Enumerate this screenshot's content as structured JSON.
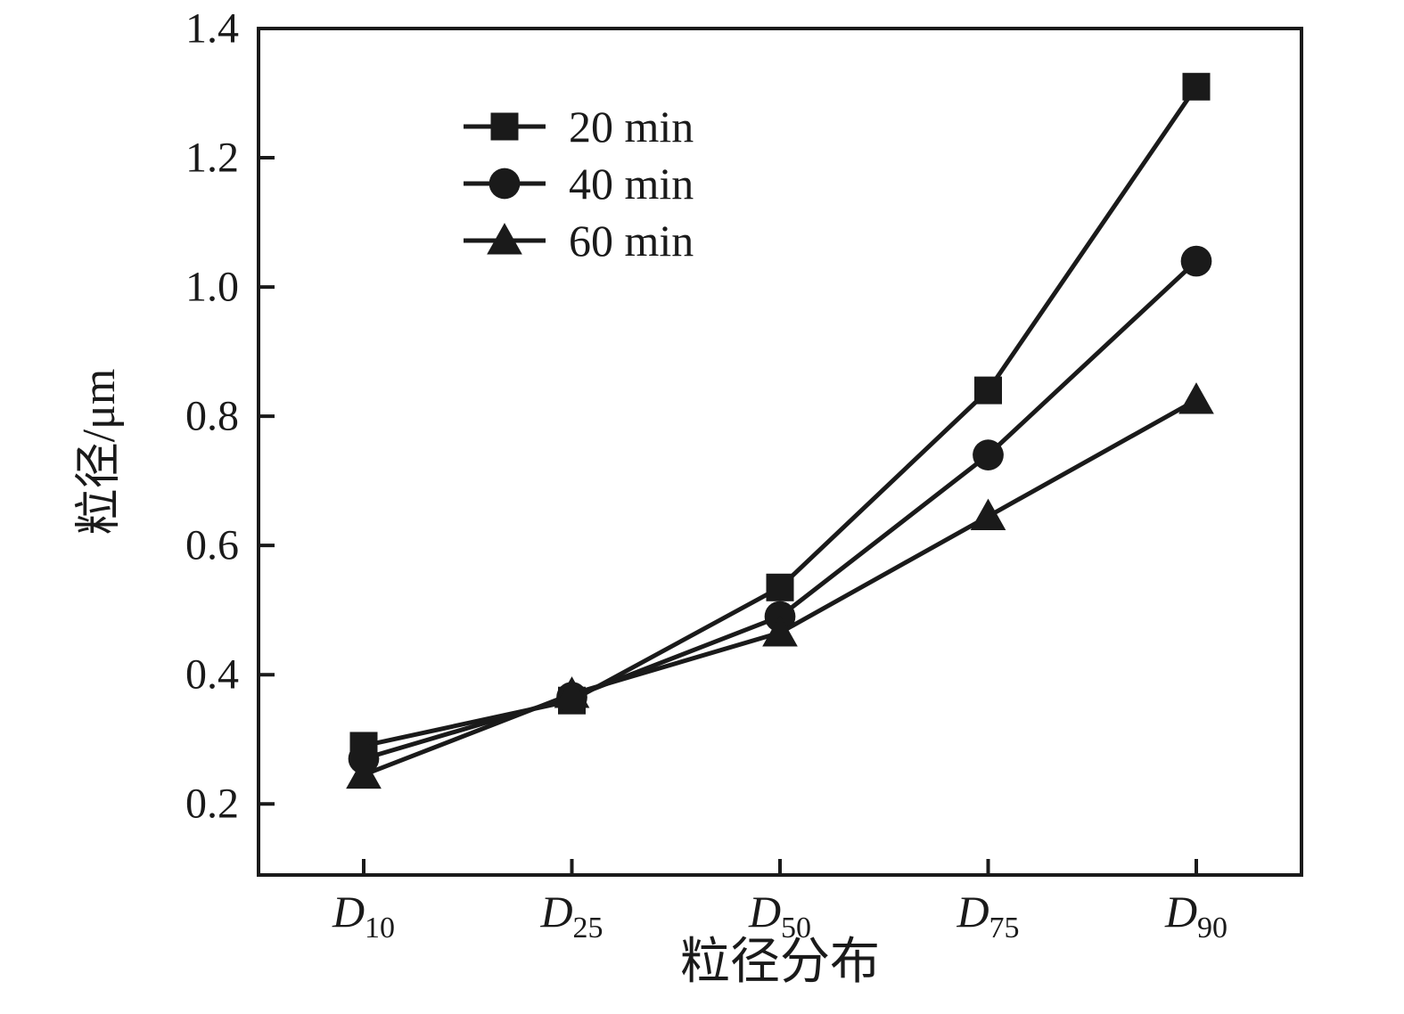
{
  "chart_data": {
    "type": "line",
    "title": "",
    "xlabel": "粒径分布",
    "ylabel": "粒径/μm",
    "ylim": [
      0.09,
      1.4
    ],
    "yticks": [
      0.2,
      0.4,
      0.6,
      0.8,
      1.0,
      1.2,
      1.4
    ],
    "categories": [
      {
        "base": "D",
        "sub": "10"
      },
      {
        "base": "D",
        "sub": "25"
      },
      {
        "base": "D",
        "sub": "50"
      },
      {
        "base": "D",
        "sub": "75"
      },
      {
        "base": "D",
        "sub": "90"
      }
    ],
    "series": [
      {
        "name": "20 min",
        "marker": "square",
        "values": [
          0.29,
          0.36,
          0.535,
          0.84,
          1.31
        ]
      },
      {
        "name": "40 min",
        "marker": "circle",
        "values": [
          0.27,
          0.365,
          0.49,
          0.74,
          1.04
        ]
      },
      {
        "name": "60 min",
        "marker": "triangle",
        "values": [
          0.245,
          0.37,
          0.465,
          0.645,
          0.825
        ]
      }
    ],
    "legend_position": "top-left-inside",
    "line_color": "#1a1a1a",
    "background": "#ffffff",
    "grid": false
  }
}
